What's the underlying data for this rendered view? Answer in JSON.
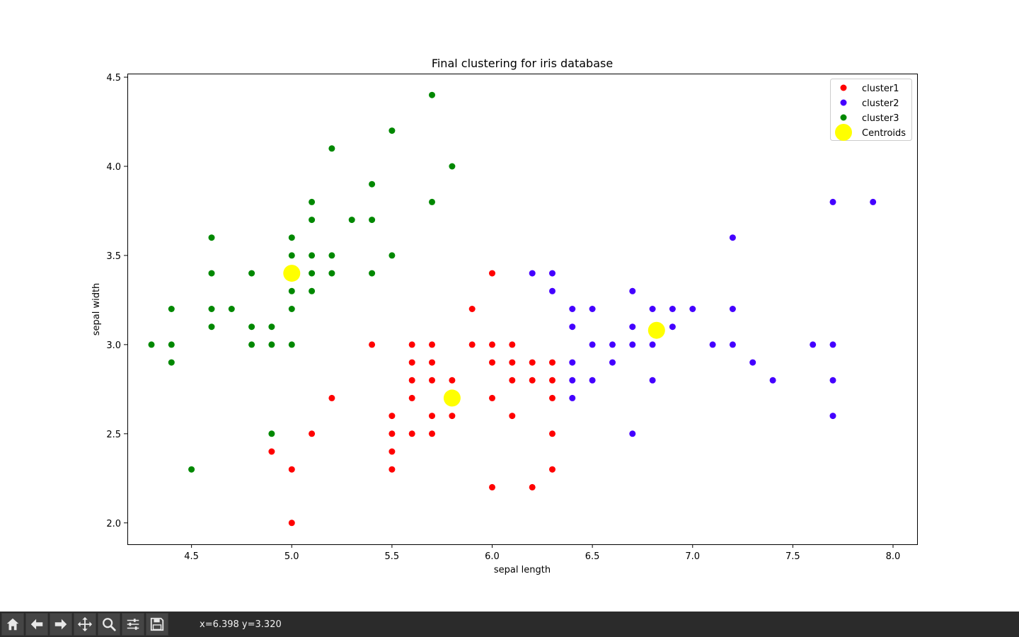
{
  "chart_data": {
    "type": "scatter",
    "title": "Final clustering for iris database",
    "xlabel": "sepal length",
    "ylabel": "sepal width",
    "xlim": [
      4.18,
      8.12
    ],
    "ylim": [
      1.88,
      4.52
    ],
    "xticks": [
      "4.5",
      "5.0",
      "5.5",
      "6.0",
      "6.5",
      "7.0",
      "7.5",
      "8.0"
    ],
    "yticks": [
      "2.0",
      "2.5",
      "3.0",
      "3.5",
      "4.0",
      "4.5"
    ],
    "grid": false,
    "legend_position": "top-right",
    "series": [
      {
        "name": "cluster1",
        "color": "#ff0000",
        "points": [
          [
            5.0,
            2.0
          ],
          [
            5.0,
            2.3
          ],
          [
            4.9,
            2.4
          ],
          [
            5.1,
            2.5
          ],
          [
            5.2,
            2.7
          ],
          [
            5.4,
            3.0
          ],
          [
            5.5,
            2.3
          ],
          [
            5.5,
            2.4
          ],
          [
            5.5,
            2.5
          ],
          [
            5.5,
            2.6
          ],
          [
            5.6,
            2.5
          ],
          [
            5.6,
            2.7
          ],
          [
            5.6,
            2.8
          ],
          [
            5.6,
            2.9
          ],
          [
            5.6,
            3.0
          ],
          [
            5.7,
            2.5
          ],
          [
            5.7,
            2.6
          ],
          [
            5.7,
            2.8
          ],
          [
            5.7,
            2.9
          ],
          [
            5.7,
            3.0
          ],
          [
            5.8,
            2.6
          ],
          [
            5.8,
            2.7
          ],
          [
            5.8,
            2.8
          ],
          [
            5.9,
            3.0
          ],
          [
            5.9,
            3.2
          ],
          [
            6.0,
            2.2
          ],
          [
            6.0,
            2.7
          ],
          [
            6.0,
            2.9
          ],
          [
            6.0,
            3.0
          ],
          [
            6.0,
            3.4
          ],
          [
            6.1,
            2.6
          ],
          [
            6.1,
            2.8
          ],
          [
            6.1,
            2.9
          ],
          [
            6.1,
            3.0
          ],
          [
            6.2,
            2.2
          ],
          [
            6.2,
            2.8
          ],
          [
            6.2,
            2.9
          ],
          [
            6.3,
            2.3
          ],
          [
            6.3,
            2.5
          ],
          [
            6.3,
            2.7
          ],
          [
            6.3,
            2.8
          ],
          [
            6.3,
            2.9
          ]
        ]
      },
      {
        "name": "cluster2",
        "color": "#4400ff",
        "points": [
          [
            6.2,
            3.4
          ],
          [
            6.3,
            3.3
          ],
          [
            6.3,
            3.4
          ],
          [
            6.4,
            2.7
          ],
          [
            6.4,
            2.8
          ],
          [
            6.4,
            2.9
          ],
          [
            6.4,
            3.1
          ],
          [
            6.4,
            3.2
          ],
          [
            6.5,
            2.8
          ],
          [
            6.5,
            3.0
          ],
          [
            6.5,
            3.2
          ],
          [
            6.6,
            2.9
          ],
          [
            6.6,
            3.0
          ],
          [
            6.7,
            2.5
          ],
          [
            6.7,
            3.0
          ],
          [
            6.7,
            3.1
          ],
          [
            6.7,
            3.3
          ],
          [
            6.8,
            2.8
          ],
          [
            6.8,
            3.0
          ],
          [
            6.8,
            3.2
          ],
          [
            6.9,
            3.1
          ],
          [
            6.9,
            3.2
          ],
          [
            7.0,
            3.2
          ],
          [
            7.1,
            3.0
          ],
          [
            7.2,
            3.0
          ],
          [
            7.2,
            3.2
          ],
          [
            7.2,
            3.6
          ],
          [
            7.3,
            2.9
          ],
          [
            7.4,
            2.8
          ],
          [
            7.6,
            3.0
          ],
          [
            7.7,
            2.6
          ],
          [
            7.7,
            2.8
          ],
          [
            7.7,
            3.0
          ],
          [
            7.7,
            3.8
          ],
          [
            7.9,
            3.8
          ]
        ]
      },
      {
        "name": "cluster3",
        "color": "#008800",
        "points": [
          [
            4.3,
            3.0
          ],
          [
            4.4,
            2.9
          ],
          [
            4.4,
            3.0
          ],
          [
            4.4,
            3.2
          ],
          [
            4.5,
            2.3
          ],
          [
            4.6,
            3.1
          ],
          [
            4.6,
            3.2
          ],
          [
            4.6,
            3.4
          ],
          [
            4.6,
            3.6
          ],
          [
            4.7,
            3.2
          ],
          [
            4.8,
            3.0
          ],
          [
            4.8,
            3.1
          ],
          [
            4.8,
            3.4
          ],
          [
            4.9,
            2.5
          ],
          [
            4.9,
            3.0
          ],
          [
            4.9,
            3.1
          ],
          [
            5.0,
            3.0
          ],
          [
            5.0,
            3.2
          ],
          [
            5.0,
            3.3
          ],
          [
            5.0,
            3.5
          ],
          [
            5.0,
            3.6
          ],
          [
            5.1,
            3.3
          ],
          [
            5.1,
            3.4
          ],
          [
            5.1,
            3.5
          ],
          [
            5.1,
            3.7
          ],
          [
            5.1,
            3.8
          ],
          [
            5.2,
            3.4
          ],
          [
            5.2,
            3.5
          ],
          [
            5.2,
            4.1
          ],
          [
            5.3,
            3.7
          ],
          [
            5.4,
            3.4
          ],
          [
            5.4,
            3.7
          ],
          [
            5.4,
            3.9
          ],
          [
            5.5,
            3.5
          ],
          [
            5.5,
            4.2
          ],
          [
            5.7,
            3.8
          ],
          [
            5.7,
            4.4
          ],
          [
            5.8,
            4.0
          ]
        ]
      },
      {
        "name": "Centroids",
        "color": "#ffff00",
        "marker": "large",
        "points": [
          [
            5.0,
            3.4
          ],
          [
            5.8,
            2.7
          ],
          [
            6.82,
            3.08
          ]
        ]
      }
    ]
  },
  "toolbar": {
    "buttons": [
      {
        "name": "home-button",
        "icon": "home-icon"
      },
      {
        "name": "back-button",
        "icon": "arrow-left-icon"
      },
      {
        "name": "forward-button",
        "icon": "arrow-right-icon"
      },
      {
        "name": "pan-button",
        "icon": "move-icon"
      },
      {
        "name": "zoom-button",
        "icon": "magnifier-icon"
      },
      {
        "name": "configure-subplots-button",
        "icon": "sliders-icon"
      },
      {
        "name": "save-button",
        "icon": "floppy-disk-icon"
      }
    ],
    "coords": "x=6.398 y=3.320"
  }
}
